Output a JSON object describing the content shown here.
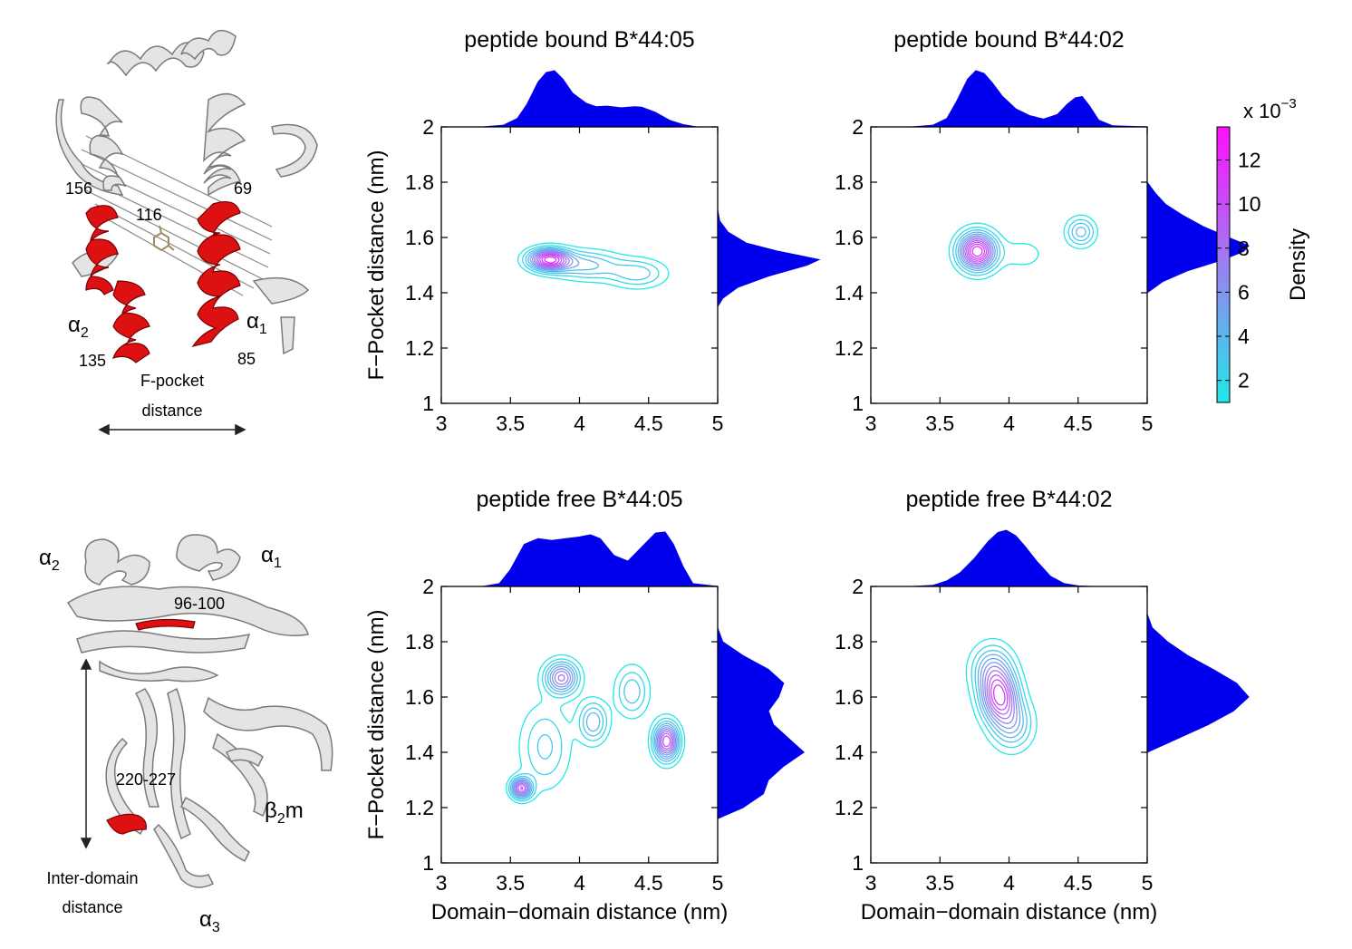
{
  "figure": {
    "colors": {
      "marginal": "#0000ee",
      "contour_low": "#22e8e8",
      "contour_high": "#ff10ff",
      "helix_highlight": "#dd1111",
      "ribbon": "#d8d8d8"
    },
    "structure_top": {
      "labels": {
        "r156": "156",
        "r69": "69",
        "r116": "116",
        "alpha2": "α",
        "alpha2_sub": "2",
        "alpha1": "α",
        "alpha1_sub": "1",
        "r135": "135",
        "r85": "85"
      },
      "caption_line1": "F-pocket",
      "caption_line2": "distance"
    },
    "structure_bottom": {
      "labels": {
        "alpha2": "α",
        "alpha2_sub": "2",
        "alpha1": "α",
        "alpha1_sub": "1",
        "r96_100": "96-100",
        "r220_227": "220-227",
        "beta2m": "β",
        "beta2m_sub": "2",
        "beta2m_suffix": "m",
        "alpha3": "α",
        "alpha3_sub": "3"
      },
      "caption_line1": "Inter-domain",
      "caption_line2": "distance"
    },
    "colorbar": {
      "exponent_prefix": "x 10",
      "exponent": "−3",
      "label": "Density",
      "range": [
        1,
        13.5
      ],
      "ticks": [
        "2",
        "4",
        "6",
        "8",
        "10",
        "12"
      ],
      "tick_values": [
        2,
        4,
        6,
        8,
        10,
        12
      ]
    }
  },
  "chart_data": [
    {
      "type": "contour",
      "title": "peptide bound B*44:05",
      "xlabel": "",
      "ylabel": "F−Pocket distance (nm)",
      "xlim": [
        3,
        5
      ],
      "ylim": [
        1,
        2
      ],
      "xticks": [
        "3",
        "3.5",
        "4",
        "4.5",
        "5"
      ],
      "yticks": [
        "1",
        "1.2",
        "1.4",
        "1.6",
        "1.8",
        "2"
      ],
      "peak_density": 13,
      "density_peaks": [
        {
          "x": 3.78,
          "y": 1.52,
          "sx": 0.1,
          "sy": 0.026,
          "w": 1.0
        },
        {
          "x": 4.05,
          "y": 1.5,
          "sx": 0.16,
          "sy": 0.035,
          "w": 0.35
        },
        {
          "x": 4.42,
          "y": 1.47,
          "sx": 0.14,
          "sy": 0.035,
          "w": 0.3
        }
      ],
      "x_marginal": {
        "x": [
          3.0,
          3.3,
          3.45,
          3.55,
          3.62,
          3.7,
          3.76,
          3.82,
          3.88,
          3.95,
          4.05,
          4.12,
          4.2,
          4.3,
          4.4,
          4.45,
          4.55,
          4.65,
          4.75,
          4.85,
          5.0
        ],
        "density": [
          0,
          0,
          0.03,
          0.15,
          0.4,
          0.8,
          0.97,
          1.0,
          0.85,
          0.6,
          0.42,
          0.36,
          0.37,
          0.34,
          0.36,
          0.35,
          0.26,
          0.12,
          0.04,
          0,
          0
        ]
      },
      "y_marginal": {
        "y": [
          1.35,
          1.38,
          1.42,
          1.46,
          1.5,
          1.52,
          1.55,
          1.58,
          1.62,
          1.66,
          1.7
        ],
        "density": [
          0,
          0.05,
          0.2,
          0.5,
          0.88,
          1.0,
          0.6,
          0.28,
          0.1,
          0.02,
          0
        ]
      }
    },
    {
      "type": "contour",
      "title": "peptide bound B*44:02",
      "xlabel": "",
      "ylabel": "",
      "xlim": [
        3,
        5
      ],
      "ylim": [
        1,
        2
      ],
      "xticks": [
        "3",
        "3.5",
        "4",
        "4.5",
        "5"
      ],
      "yticks": [
        "1",
        "1.2",
        "1.4",
        "1.6",
        "1.8",
        "2"
      ],
      "peak_density": 13,
      "density_peaks": [
        {
          "x": 3.77,
          "y": 1.55,
          "sx": 0.09,
          "sy": 0.045,
          "w": 1.0
        },
        {
          "x": 4.52,
          "y": 1.62,
          "sx": 0.07,
          "sy": 0.035,
          "w": 0.35
        },
        {
          "x": 4.1,
          "y": 1.54,
          "sx": 0.12,
          "sy": 0.04,
          "w": 0.12
        }
      ],
      "x_marginal": {
        "x": [
          3.0,
          3.3,
          3.45,
          3.55,
          3.62,
          3.7,
          3.76,
          3.82,
          3.88,
          3.95,
          4.05,
          4.15,
          4.25,
          4.35,
          4.42,
          4.48,
          4.53,
          4.58,
          4.65,
          4.75,
          5.0
        ],
        "density": [
          0,
          0,
          0.03,
          0.15,
          0.45,
          0.85,
          1.0,
          0.95,
          0.78,
          0.55,
          0.32,
          0.2,
          0.14,
          0.22,
          0.4,
          0.52,
          0.54,
          0.38,
          0.12,
          0.02,
          0
        ]
      },
      "y_marginal": {
        "y": [
          1.4,
          1.44,
          1.48,
          1.52,
          1.55,
          1.57,
          1.6,
          1.64,
          1.68,
          1.72,
          1.76,
          1.8
        ],
        "density": [
          0,
          0.15,
          0.4,
          0.75,
          0.95,
          1.0,
          0.8,
          0.55,
          0.35,
          0.18,
          0.08,
          0
        ]
      }
    },
    {
      "type": "contour",
      "title": "peptide free B*44:05",
      "xlabel": "Domain−domain distance (nm)",
      "ylabel": "F−Pocket distance (nm)",
      "xlim": [
        3,
        5
      ],
      "ylim": [
        1,
        2
      ],
      "xticks": [
        "3",
        "3.5",
        "4",
        "4.5",
        "5"
      ],
      "yticks": [
        "1",
        "1.2",
        "1.4",
        "1.6",
        "1.8",
        "2"
      ],
      "peak_density": 11,
      "density_peaks": [
        {
          "x": 3.58,
          "y": 1.27,
          "sx": 0.05,
          "sy": 0.025,
          "w": 0.9
        },
        {
          "x": 3.87,
          "y": 1.67,
          "sx": 0.08,
          "sy": 0.04,
          "w": 0.75
        },
        {
          "x": 4.63,
          "y": 1.44,
          "sx": 0.06,
          "sy": 0.045,
          "w": 1.0
        },
        {
          "x": 4.1,
          "y": 1.51,
          "sx": 0.07,
          "sy": 0.05,
          "w": 0.45
        },
        {
          "x": 4.38,
          "y": 1.62,
          "sx": 0.08,
          "sy": 0.06,
          "w": 0.35
        },
        {
          "x": 3.75,
          "y": 1.42,
          "sx": 0.12,
          "sy": 0.1,
          "w": 0.3
        }
      ],
      "x_marginal": {
        "x": [
          3.0,
          3.3,
          3.42,
          3.5,
          3.6,
          3.7,
          3.8,
          3.9,
          4.0,
          4.08,
          4.15,
          4.25,
          4.35,
          4.45,
          4.55,
          4.62,
          4.68,
          4.75,
          4.82,
          5.0
        ],
        "density": [
          0,
          0,
          0.05,
          0.3,
          0.75,
          0.85,
          0.82,
          0.85,
          0.88,
          0.92,
          0.85,
          0.55,
          0.45,
          0.7,
          0.95,
          0.97,
          0.75,
          0.35,
          0.05,
          0
        ]
      },
      "y_marginal": {
        "y": [
          1.16,
          1.2,
          1.25,
          1.3,
          1.35,
          1.4,
          1.45,
          1.5,
          1.55,
          1.6,
          1.65,
          1.7,
          1.75,
          1.8,
          1.85
        ],
        "density": [
          0,
          0.25,
          0.45,
          0.5,
          0.65,
          0.85,
          0.7,
          0.55,
          0.5,
          0.6,
          0.65,
          0.5,
          0.25,
          0.05,
          0
        ]
      }
    },
    {
      "type": "contour",
      "title": "peptide free B*44:02",
      "xlabel": "Domain−domain distance (nm)",
      "ylabel": "",
      "xlim": [
        3,
        5
      ],
      "ylim": [
        1,
        2
      ],
      "xticks": [
        "3",
        "3.5",
        "4",
        "4.5",
        "5"
      ],
      "yticks": [
        "1",
        "1.2",
        "1.4",
        "1.6",
        "1.8",
        "2"
      ],
      "peak_density": 12,
      "density_peaks": [
        {
          "x": 3.93,
          "y": 1.6,
          "sx": 0.09,
          "sy": 0.06,
          "w": 1.0
        },
        {
          "x": 3.88,
          "y": 1.7,
          "sx": 0.1,
          "sy": 0.06,
          "w": 0.55
        },
        {
          "x": 4.02,
          "y": 1.5,
          "sx": 0.1,
          "sy": 0.06,
          "w": 0.5
        }
      ],
      "x_marginal": {
        "x": [
          3.0,
          3.3,
          3.45,
          3.55,
          3.65,
          3.75,
          3.85,
          3.92,
          3.98,
          4.05,
          4.12,
          4.2,
          4.3,
          4.4,
          4.5,
          4.6,
          5.0
        ],
        "density": [
          0,
          0,
          0.02,
          0.1,
          0.25,
          0.5,
          0.8,
          0.96,
          1.0,
          0.9,
          0.7,
          0.45,
          0.18,
          0.05,
          0.01,
          0,
          0
        ]
      },
      "y_marginal": {
        "y": [
          1.4,
          1.45,
          1.5,
          1.55,
          1.6,
          1.65,
          1.7,
          1.75,
          1.8,
          1.85,
          1.9
        ],
        "density": [
          0,
          0.3,
          0.6,
          0.85,
          1.0,
          0.88,
          0.65,
          0.4,
          0.2,
          0.05,
          0
        ]
      }
    }
  ]
}
